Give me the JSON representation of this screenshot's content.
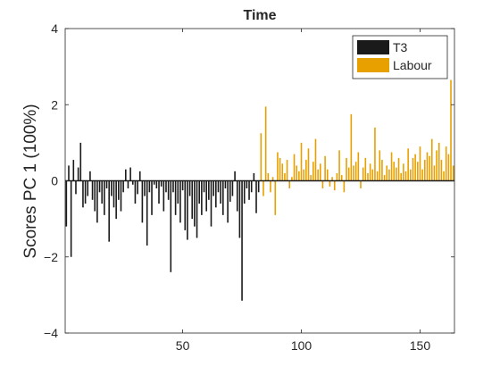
{
  "chart_data": {
    "type": "bar",
    "title": "Time",
    "xlabel": "",
    "ylabel": "Scores PC 1 (100%)",
    "xlim": [
      0.5,
      164.5
    ],
    "ylim": [
      -4,
      4
    ],
    "xticks": [
      50,
      100,
      150
    ],
    "yticks": [
      -4,
      -2,
      0,
      2,
      4
    ],
    "grid": false,
    "legend_position": "top-right",
    "series": [
      {
        "name": "T3",
        "color": "#1a1a1a",
        "x": [
          1,
          2,
          3,
          4,
          5,
          6,
          7,
          8,
          9,
          10,
          11,
          12,
          13,
          14,
          15,
          16,
          17,
          18,
          19,
          20,
          21,
          22,
          23,
          24,
          25,
          26,
          27,
          28,
          29,
          30,
          31,
          32,
          33,
          34,
          35,
          36,
          37,
          38,
          39,
          40,
          41,
          42,
          43,
          44,
          45,
          46,
          47,
          48,
          49,
          50,
          51,
          52,
          53,
          54,
          55,
          56,
          57,
          58,
          59,
          60,
          61,
          62,
          63,
          64,
          65,
          66,
          67,
          68,
          69,
          70,
          71,
          72,
          73,
          74,
          75,
          76,
          77,
          78,
          79,
          80,
          81,
          82
        ],
        "values": [
          -1.2,
          0.4,
          -2.0,
          0.55,
          -0.35,
          0.35,
          1.0,
          -0.7,
          -0.6,
          -0.4,
          0.25,
          -0.5,
          -0.8,
          -1.1,
          -0.3,
          -0.6,
          -0.9,
          -0.2,
          -1.6,
          -0.4,
          -0.7,
          -1.0,
          -0.5,
          -0.8,
          -0.3,
          0.3,
          -0.2,
          0.35,
          -0.1,
          -0.6,
          -0.35,
          0.25,
          -1.1,
          -0.4,
          -1.7,
          -0.3,
          -0.9,
          -0.1,
          -0.2,
          -0.6,
          -0.15,
          -0.8,
          -0.3,
          -0.5,
          -2.4,
          -0.3,
          -0.9,
          -0.6,
          -1.1,
          -0.25,
          -1.3,
          -1.55,
          -0.4,
          -1.0,
          -1.2,
          -1.5,
          -0.6,
          -0.9,
          -0.3,
          -0.8,
          -0.5,
          -1.2,
          -0.4,
          -0.7,
          -0.3,
          -0.6,
          -0.9,
          -0.2,
          -1.1,
          -0.55,
          -0.4,
          0.25,
          -0.8,
          -1.5,
          -3.15,
          -0.6,
          -0.2,
          -0.5,
          -0.3,
          0.2,
          -0.85,
          -0.3
        ]
      },
      {
        "name": "Labour",
        "color": "#e8a000",
        "x": [
          83,
          84,
          85,
          86,
          87,
          88,
          89,
          90,
          91,
          92,
          93,
          94,
          95,
          96,
          97,
          98,
          99,
          100,
          101,
          102,
          103,
          104,
          105,
          106,
          107,
          108,
          109,
          110,
          111,
          112,
          113,
          114,
          115,
          116,
          117,
          118,
          119,
          120,
          121,
          122,
          123,
          124,
          125,
          126,
          127,
          128,
          129,
          130,
          131,
          132,
          133,
          134,
          135,
          136,
          137,
          138,
          139,
          140,
          141,
          142,
          143,
          144,
          145,
          146,
          147,
          148,
          149,
          150,
          151,
          152,
          153,
          154,
          155,
          156,
          157,
          158,
          159,
          160,
          161,
          162,
          163,
          164
        ],
        "values": [
          1.25,
          -0.4,
          1.95,
          0.2,
          -0.3,
          0.1,
          -0.9,
          0.75,
          0.6,
          0.45,
          0.2,
          0.55,
          -0.2,
          0.1,
          0.7,
          0.4,
          0.25,
          1.0,
          0.3,
          0.55,
          0.85,
          0.15,
          0.5,
          1.1,
          0.3,
          0.45,
          -0.2,
          0.65,
          0.3,
          -0.15,
          0.1,
          -0.25,
          0.2,
          0.8,
          0.15,
          -0.3,
          0.6,
          0.35,
          1.75,
          0.4,
          0.5,
          0.75,
          -0.2,
          0.35,
          0.6,
          0.2,
          0.45,
          0.3,
          1.4,
          0.25,
          0.8,
          0.55,
          0.15,
          0.4,
          0.3,
          0.75,
          0.5,
          0.35,
          0.6,
          0.2,
          0.45,
          0.25,
          0.85,
          0.3,
          0.6,
          0.7,
          0.5,
          0.9,
          0.3,
          0.55,
          0.75,
          0.65,
          1.1,
          0.4,
          0.8,
          1.0,
          0.55,
          0.25,
          0.9,
          0.7,
          2.65,
          0.4
        ]
      }
    ]
  }
}
